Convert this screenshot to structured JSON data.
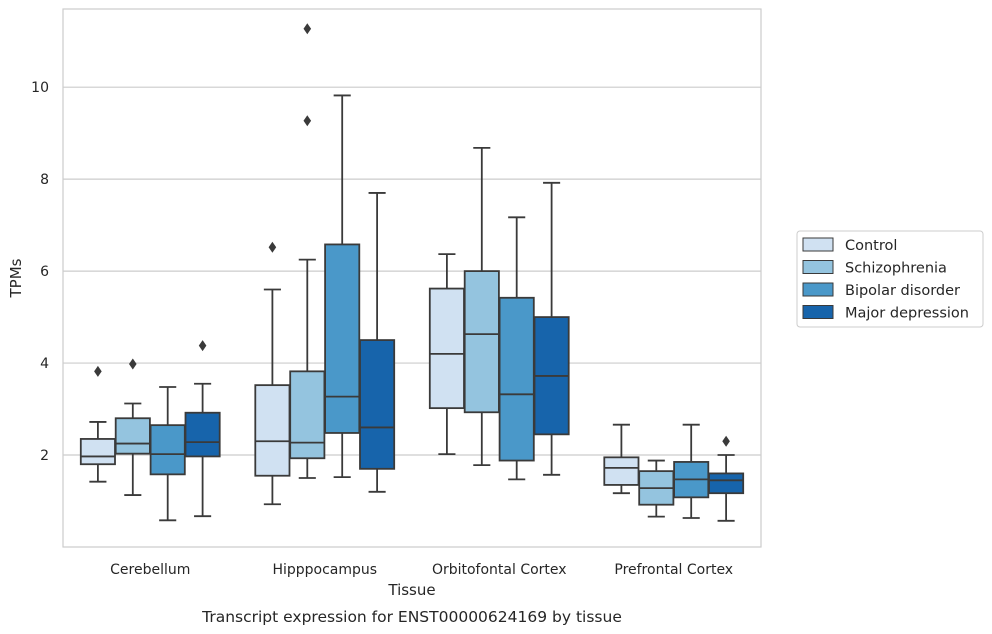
{
  "chart_data": {
    "type": "box",
    "caption": "Transcript expression for ENST00000624169 by tissue",
    "xlabel": "Tissue",
    "ylabel": "TPMs",
    "ylim": [
      0,
      11.7
    ],
    "yticks": [
      2,
      4,
      6,
      8,
      10
    ],
    "grid": "horizontal",
    "legend_position": "right",
    "categories": [
      "Cerebellum",
      "Hipppocampus",
      "Orbitofontal Cortex",
      "Prefrontal Cortex"
    ],
    "series": [
      {
        "name": "Control",
        "color": "#d0e1f2",
        "boxes": [
          {
            "whislo": 1.42,
            "q1": 1.8,
            "med": 1.97,
            "q3": 2.35,
            "whishi": 2.72,
            "fliers": [
              3.82
            ]
          },
          {
            "whislo": 0.93,
            "q1": 1.55,
            "med": 2.3,
            "q3": 3.52,
            "whishi": 5.6,
            "fliers": [
              6.52
            ]
          },
          {
            "whislo": 2.02,
            "q1": 3.02,
            "med": 4.2,
            "q3": 5.62,
            "whishi": 6.37,
            "fliers": []
          },
          {
            "whislo": 1.17,
            "q1": 1.35,
            "med": 1.72,
            "q3": 1.95,
            "whishi": 2.66,
            "fliers": []
          }
        ]
      },
      {
        "name": "Schizophrenia",
        "color": "#94c4df",
        "boxes": [
          {
            "whislo": 1.13,
            "q1": 2.03,
            "med": 2.25,
            "q3": 2.8,
            "whishi": 3.12,
            "fliers": [
              3.98
            ]
          },
          {
            "whislo": 1.5,
            "q1": 1.93,
            "med": 2.27,
            "q3": 3.82,
            "whishi": 6.25,
            "fliers": [
              9.27,
              11.27
            ]
          },
          {
            "whislo": 1.78,
            "q1": 2.93,
            "med": 4.63,
            "q3": 6.0,
            "whishi": 8.68,
            "fliers": []
          },
          {
            "whislo": 0.66,
            "q1": 0.92,
            "med": 1.28,
            "q3": 1.65,
            "whishi": 1.88,
            "fliers": []
          }
        ]
      },
      {
        "name": "Bipolar disorder",
        "color": "#4a98c9",
        "boxes": [
          {
            "whislo": 0.58,
            "q1": 1.58,
            "med": 2.02,
            "q3": 2.65,
            "whishi": 3.48,
            "fliers": []
          },
          {
            "whislo": 1.52,
            "q1": 2.48,
            "med": 3.27,
            "q3": 6.58,
            "whishi": 9.82,
            "fliers": []
          },
          {
            "whislo": 1.47,
            "q1": 1.88,
            "med": 3.32,
            "q3": 5.42,
            "whishi": 7.17,
            "fliers": []
          },
          {
            "whislo": 0.63,
            "q1": 1.08,
            "med": 1.47,
            "q3": 1.85,
            "whishi": 2.66,
            "fliers": []
          }
        ]
      },
      {
        "name": "Major depression",
        "color": "#1764ab",
        "boxes": [
          {
            "whislo": 0.67,
            "q1": 1.97,
            "med": 2.28,
            "q3": 2.92,
            "whishi": 3.55,
            "fliers": [
              4.38
            ]
          },
          {
            "whislo": 1.2,
            "q1": 1.7,
            "med": 2.6,
            "q3": 4.5,
            "whishi": 7.7,
            "fliers": []
          },
          {
            "whislo": 1.57,
            "q1": 2.45,
            "med": 3.72,
            "q3": 5.0,
            "whishi": 7.92,
            "fliers": []
          },
          {
            "whislo": 0.57,
            "q1": 1.17,
            "med": 1.45,
            "q3": 1.6,
            "whishi": 2.0,
            "fliers": [
              2.3
            ]
          }
        ]
      }
    ]
  }
}
